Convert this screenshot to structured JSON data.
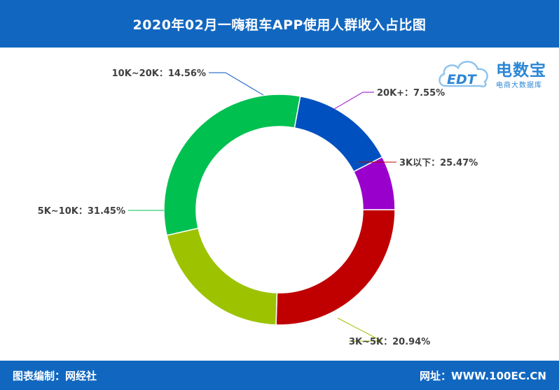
{
  "header": {
    "title": "2020年02月一嗨租车APP使用人群收入占比图"
  },
  "footer": {
    "source": "图表编制：网经社",
    "website": "网址：WWW.100EC.CN"
  },
  "logo": {
    "name": "电数宝",
    "subtitle": "电商大数据库",
    "mark_text": "EDT"
  },
  "colors": {
    "header_bg": "#1167c0",
    "footer_bg": "#1167c0",
    "logo": "#2a86d6"
  },
  "chart_data": {
    "type": "pie",
    "donut": true,
    "start_angle_deg": 0,
    "direction": "clockwise",
    "slices": [
      {
        "label": "3K以下：25.47%",
        "value": 25.47,
        "color": "#c00000",
        "side": "right"
      },
      {
        "label": "3K~5K：20.94%",
        "value": 20.94,
        "color": "#9dc300",
        "side": "right"
      },
      {
        "label": "5K~10K：31.45%",
        "value": 31.45,
        "color": "#00c050",
        "side": "left"
      },
      {
        "label": "10K~20K：14.56%",
        "value": 14.56,
        "color": "#0050c0",
        "side": "left"
      },
      {
        "label": "20K+：7.55%",
        "value": 7.55,
        "color": "#9900cc",
        "side": "right"
      }
    ]
  }
}
